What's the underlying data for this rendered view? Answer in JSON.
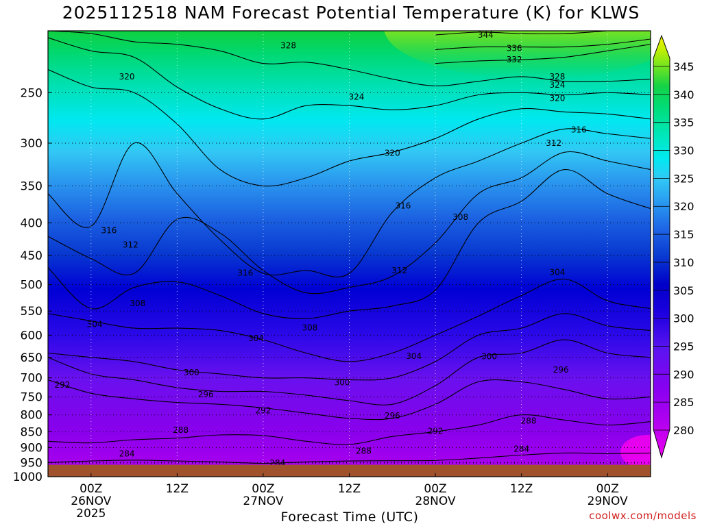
{
  "header": {
    "title": "2025112518 NAM Forecast Potential Temperature (K) for KLWS"
  },
  "footer": {
    "credit": "coolwx.com/models"
  },
  "chart_data": {
    "type": "heatmap",
    "title": "2025112518 NAM Forecast Potential Temperature (K) for KLWS",
    "xlabel": "Forecast Time (UTC)",
    "ylabel": "",
    "y_axis": {
      "scale": "log-pressure",
      "range": [
        1000,
        200
      ],
      "ticks": [
        250,
        300,
        350,
        400,
        450,
        500,
        550,
        600,
        650,
        700,
        750,
        800,
        850,
        900,
        950,
        1000
      ]
    },
    "x_axis": {
      "range_hours_from_init": [
        0,
        84
      ],
      "ticks": [
        {
          "hour": 6,
          "line1": "00Z",
          "line2": "26NOV",
          "line3": "2025"
        },
        {
          "hour": 18,
          "line1": "12Z",
          "line2": "",
          "line3": ""
        },
        {
          "hour": 30,
          "line1": "00Z",
          "line2": "27NOV",
          "line3": ""
        },
        {
          "hour": 42,
          "line1": "12Z",
          "line2": "",
          "line3": ""
        },
        {
          "hour": 54,
          "line1": "00Z",
          "line2": "28NOV",
          "line3": ""
        },
        {
          "hour": 66,
          "line1": "12Z",
          "line2": "",
          "line3": ""
        },
        {
          "hour": 78,
          "line1": "00Z",
          "line2": "29NOV",
          "line3": ""
        }
      ]
    },
    "colorbar": {
      "labels": [
        280,
        285,
        290,
        295,
        300,
        305,
        310,
        315,
        320,
        325,
        330,
        335,
        340,
        345
      ],
      "colors": [
        "#f000f0",
        "#b400f0",
        "#8200f0",
        "#5a14f0",
        "#1e00e0",
        "#0000c8",
        "#0a3cd2",
        "#1e64e6",
        "#2896f0",
        "#32c8f5",
        "#00eaf0",
        "#00e6b4",
        "#00dc78",
        "#14d246",
        "#78e61e",
        "#c8f000",
        "#f0f000"
      ]
    },
    "ground_level_hpa": 958,
    "grid": "dotted",
    "contour_interval_k": 4,
    "contours": [
      {
        "label": "284",
        "hours": [
          0,
          6,
          12,
          18,
          24,
          30,
          36,
          42,
          48,
          54,
          60,
          66,
          72,
          78,
          84
        ],
        "p": [
          950,
          945,
          942,
          945,
          948,
          953,
          948,
          945,
          944,
          943,
          935,
          925,
          918,
          920,
          918
        ]
      },
      {
        "label": "288",
        "hours": [
          0,
          6,
          12,
          18,
          24,
          30,
          36,
          42,
          48,
          54,
          60,
          66,
          72,
          78,
          84
        ],
        "p": [
          880,
          885,
          875,
          870,
          860,
          862,
          880,
          890,
          865,
          850,
          830,
          800,
          815,
          830,
          820
        ]
      },
      {
        "label": "292",
        "hours": [
          0,
          6,
          12,
          18,
          24,
          30,
          36,
          42,
          48,
          54,
          60,
          66,
          72,
          78,
          84
        ],
        "p": [
          705,
          740,
          755,
          765,
          770,
          780,
          795,
          810,
          810,
          770,
          710,
          710,
          730,
          755,
          750
        ]
      },
      {
        "label": "296",
        "hours": [
          0,
          6,
          12,
          18,
          24,
          30,
          36,
          42,
          48,
          54,
          60,
          66,
          72,
          78,
          84
        ],
        "p": [
          650,
          690,
          705,
          725,
          735,
          735,
          745,
          760,
          770,
          720,
          650,
          640,
          610,
          640,
          650
        ]
      },
      {
        "label": "300",
        "hours": [
          0,
          6,
          12,
          18,
          24,
          30,
          36,
          42,
          48,
          54,
          60,
          66,
          72,
          78,
          84
        ],
        "p": [
          640,
          650,
          660,
          680,
          690,
          700,
          700,
          705,
          700,
          660,
          600,
          585,
          555,
          580,
          590
        ]
      },
      {
        "label": "304",
        "hours": [
          0,
          6,
          12,
          18,
          24,
          30,
          36,
          42,
          48,
          54,
          60,
          66,
          72,
          78,
          84
        ],
        "p": [
          555,
          570,
          585,
          585,
          590,
          610,
          640,
          660,
          640,
          600,
          560,
          520,
          490,
          530,
          545
        ]
      },
      {
        "label": "308",
        "hours": [
          0,
          6,
          12,
          18,
          24,
          30,
          36,
          42,
          48,
          54,
          60,
          66,
          72,
          78,
          84
        ],
        "p": [
          470,
          545,
          505,
          495,
          520,
          555,
          565,
          550,
          540,
          510,
          400,
          370,
          330,
          360,
          380
        ]
      },
      {
        "label": "312",
        "hours": [
          0,
          6,
          12,
          18,
          24,
          30,
          36,
          42,
          48,
          54,
          60,
          66,
          72,
          78,
          84
        ],
        "p": [
          420,
          455,
          480,
          395,
          415,
          475,
          515,
          505,
          485,
          430,
          360,
          340,
          310,
          320,
          330
        ]
      },
      {
        "label": "316",
        "hours": [
          0,
          6,
          12,
          18,
          24,
          30,
          36,
          42,
          48,
          54,
          60,
          66,
          72,
          78,
          84
        ],
        "p": [
          360,
          405,
          300,
          360,
          425,
          480,
          475,
          480,
          385,
          340,
          320,
          300,
          285,
          290,
          295
        ]
      },
      {
        "label": "320",
        "hours": [
          0,
          6,
          12,
          18,
          24,
          30,
          36,
          42,
          48,
          54,
          60,
          66,
          72,
          78,
          84
        ],
        "p": [
          230,
          245,
          250,
          280,
          330,
          350,
          340,
          320,
          310,
          295,
          275,
          265,
          268,
          270,
          275
        ]
      },
      {
        "label": "324",
        "hours": [
          0,
          6,
          12,
          18,
          24,
          30,
          36,
          42,
          48,
          54,
          60,
          66,
          72,
          78,
          84
        ],
        "p": [
          205,
          215,
          220,
          245,
          265,
          275,
          262,
          262,
          266,
          262,
          252,
          250,
          252,
          250,
          252
        ]
      },
      {
        "label": "328",
        "hours": [
          0,
          6,
          12,
          18,
          24,
          30,
          36,
          42,
          48,
          54,
          60,
          66,
          72,
          78,
          84
        ],
        "p": [
          200,
          202,
          208,
          210,
          215,
          225,
          224,
          230,
          238,
          244,
          240,
          236,
          240,
          240,
          238
        ]
      },
      {
        "label": "332",
        "hours": [
          54,
          60,
          66,
          72,
          78,
          84
        ],
        "p": [
          225,
          223,
          222,
          220,
          215,
          210
        ]
      },
      {
        "label": "336",
        "hours": [
          54,
          60,
          66,
          72,
          78,
          84
        ],
        "p": [
          214,
          212,
          212,
          212,
          210,
          206
        ]
      },
      {
        "label": "344",
        "hours": [
          54,
          60,
          66,
          72,
          78
        ],
        "p": [
          203,
          201,
          202,
          202,
          200
        ]
      }
    ],
    "contour_labels": [
      {
        "text": "328",
        "hour": 33.5,
        "p": 211
      },
      {
        "text": "344",
        "hour": 61,
        "p": 203
      },
      {
        "text": "336",
        "hour": 65,
        "p": 213
      },
      {
        "text": "332",
        "hour": 65,
        "p": 222
      },
      {
        "text": "328",
        "hour": 71,
        "p": 236
      },
      {
        "text": "324",
        "hour": 71,
        "p": 243
      },
      {
        "text": "320",
        "hour": 71,
        "p": 255
      },
      {
        "text": "316",
        "hour": 74,
        "p": 286
      },
      {
        "text": "312",
        "hour": 70.5,
        "p": 300
      },
      {
        "text": "320",
        "hour": 11,
        "p": 236
      },
      {
        "text": "324",
        "hour": 43,
        "p": 254
      },
      {
        "text": "320",
        "hour": 48,
        "p": 311
      },
      {
        "text": "316",
        "hour": 49.5,
        "p": 376
      },
      {
        "text": "308",
        "hour": 57.5,
        "p": 392
      },
      {
        "text": "304",
        "hour": 71,
        "p": 478
      },
      {
        "text": "316",
        "hour": 8.5,
        "p": 411
      },
      {
        "text": "312",
        "hour": 11.5,
        "p": 433
      },
      {
        "text": "316",
        "hour": 27.5,
        "p": 479
      },
      {
        "text": "312",
        "hour": 49,
        "p": 475
      },
      {
        "text": "308",
        "hour": 12.5,
        "p": 535
      },
      {
        "text": "304",
        "hour": 6.5,
        "p": 577
      },
      {
        "text": "304",
        "hour": 29,
        "p": 607
      },
      {
        "text": "308",
        "hour": 36.5,
        "p": 584
      },
      {
        "text": "304",
        "hour": 51,
        "p": 647
      },
      {
        "text": "300",
        "hour": 61.5,
        "p": 648
      },
      {
        "text": "296",
        "hour": 71.5,
        "p": 680
      },
      {
        "text": "300",
        "hour": 20,
        "p": 687
      },
      {
        "text": "300",
        "hour": 41,
        "p": 712
      },
      {
        "text": "292",
        "hour": 2,
        "p": 718
      },
      {
        "text": "296",
        "hour": 22,
        "p": 743
      },
      {
        "text": "292",
        "hour": 30,
        "p": 788
      },
      {
        "text": "296",
        "hour": 48,
        "p": 802
      },
      {
        "text": "292",
        "hour": 54,
        "p": 848
      },
      {
        "text": "288",
        "hour": 18.5,
        "p": 845
      },
      {
        "text": "288",
        "hour": 67,
        "p": 818
      },
      {
        "text": "288",
        "hour": 44,
        "p": 912
      },
      {
        "text": "284",
        "hour": 66,
        "p": 905
      },
      {
        "text": "284",
        "hour": 11,
        "p": 921
      },
      {
        "text": "284",
        "hour": 32,
        "p": 952
      }
    ]
  }
}
